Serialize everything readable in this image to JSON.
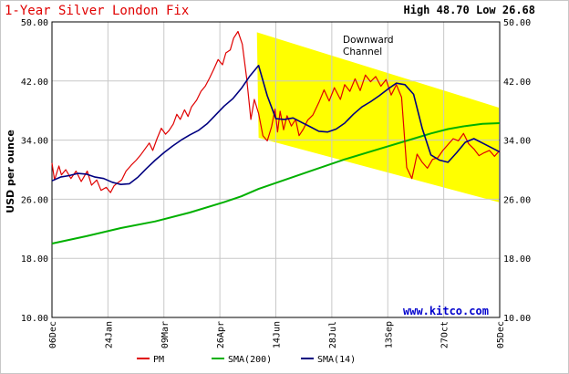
{
  "title": "1-Year Silver London Fix",
  "high_low": "High 48.70 Low 26.68",
  "annotation_line1": "Downward",
  "annotation_line2": "Channel",
  "watermark": "www.kitco.com",
  "colors": {
    "pm": "#e00000",
    "sma200": "#00b000",
    "sma14": "#000080",
    "channel": "#ffff00",
    "grid": "#c8c8c8",
    "title": "#e00000",
    "watermark": "#0000cc"
  },
  "chart_data": {
    "type": "line",
    "title": "1-Year Silver London Fix",
    "xlabel": "",
    "ylabel": "USD per ounce",
    "ylim": [
      10,
      50
    ],
    "yticks": [
      "50.00",
      "42.00",
      "34.00",
      "26.00",
      "18.00",
      "10.00"
    ],
    "ytick_values": [
      50,
      42,
      34,
      26,
      18,
      10
    ],
    "xticks": [
      "06Dec",
      "24Jan",
      "09Mar",
      "26Apr",
      "14Jun",
      "28Jul",
      "13Sep",
      "27Oct",
      "05Dec"
    ],
    "grid": true,
    "legend_position": "bottom",
    "legend": [
      "PM",
      "SMA(200)",
      "SMA(14)"
    ],
    "series": [
      {
        "name": "PM",
        "x": [
          0,
          0.3,
          0.8,
          1.1,
          1.6,
          2.2,
          2.8,
          3.4,
          4.1,
          4.6,
          5.2,
          5.7,
          6.3,
          6.8,
          7.2,
          7.6,
          8.1,
          8.6,
          9.2,
          9.8,
          10.3,
          10.8,
          11.3,
          11.7,
          12.2,
          12.7,
          13.2,
          13.6,
          14.1,
          14.5,
          14.9,
          15.4,
          15.8,
          16.2,
          16.8,
          17.3,
          17.8,
          18.3,
          18.8,
          19.3,
          19.8,
          20.2,
          20.7,
          21.1,
          21.6,
          22.1,
          22.6,
          23.1,
          23.5,
          24.0,
          24.5,
          25.0,
          25.5,
          25.9,
          26.2,
          26.5,
          26.9,
          27.3,
          27.8,
          28.3,
          28.7,
          29.2,
          29.7,
          30.3,
          31.0,
          31.6,
          32.2,
          32.8,
          33.5,
          34.0,
          34.6,
          35.2,
          35.8,
          36.4,
          37.0,
          37.6,
          38.2,
          38.8,
          39.4,
          40.0,
          40.6,
          41.2,
          41.8,
          42.4,
          43.0,
          43.6,
          44.2,
          44.8,
          45.4,
          46.0,
          46.6,
          47.2,
          47.8,
          48.4,
          49.0,
          49.6,
          50.2,
          50.8,
          51.4,
          52.0
        ],
        "values": [
          30.9,
          28.6,
          30.5,
          29.3,
          30.0,
          28.8,
          29.8,
          28.4,
          29.8,
          27.9,
          28.6,
          27.2,
          27.6,
          26.9,
          27.8,
          28.2,
          28.6,
          29.8,
          30.6,
          31.3,
          32.0,
          32.8,
          33.6,
          32.6,
          34.2,
          35.6,
          34.8,
          35.3,
          36.2,
          37.5,
          36.8,
          38.1,
          37.2,
          38.5,
          39.4,
          40.6,
          41.3,
          42.4,
          43.6,
          44.9,
          44.2,
          45.8,
          46.2,
          47.8,
          48.7,
          47.0,
          42.5,
          36.8,
          39.5,
          37.6,
          34.6,
          33.9,
          35.8,
          38.2,
          35.1,
          37.9,
          35.4,
          37.3,
          35.9,
          36.8,
          34.6,
          35.5,
          36.7,
          37.4,
          39.1,
          40.8,
          39.3,
          41.1,
          39.5,
          41.5,
          40.6,
          42.3,
          40.7,
          42.8,
          41.9,
          42.6,
          41.3,
          42.2,
          40.1,
          41.5,
          39.8,
          30.3,
          28.8,
          32.1,
          31.0,
          30.2,
          31.4,
          31.6,
          32.6,
          33.4,
          34.2,
          33.9,
          34.9,
          33.5,
          32.8,
          31.9,
          32.3,
          32.6,
          31.8,
          32.6
        ]
      },
      {
        "name": "SMA(200)",
        "x": [
          0,
          4,
          8,
          12,
          16,
          20,
          22,
          24,
          26,
          30,
          34,
          38,
          42,
          44,
          46,
          48,
          50,
          52
        ],
        "values": [
          20.0,
          21.0,
          22.1,
          23.0,
          24.2,
          25.6,
          26.4,
          27.4,
          28.2,
          29.8,
          31.4,
          32.8,
          34.2,
          34.9,
          35.5,
          35.9,
          36.2,
          36.3
        ]
      },
      {
        "name": "SMA(14)",
        "x": [
          0,
          1,
          2,
          3,
          4,
          5,
          6,
          7,
          8,
          9,
          10,
          11,
          12,
          13,
          14,
          15,
          16,
          17,
          18,
          19,
          20,
          21,
          22,
          23,
          24,
          25,
          26,
          27,
          28,
          29,
          30,
          31,
          32,
          33,
          34,
          35,
          36,
          37,
          38,
          39,
          40,
          41,
          42,
          43,
          44,
          45,
          46,
          47,
          48,
          49,
          50,
          51,
          52
        ],
        "values": [
          28.5,
          29.0,
          29.2,
          29.5,
          29.4,
          29.0,
          28.8,
          28.3,
          28.0,
          28.1,
          29.0,
          30.2,
          31.3,
          32.3,
          33.2,
          34.0,
          34.7,
          35.3,
          36.2,
          37.4,
          38.6,
          39.6,
          41.0,
          42.7,
          44.1,
          40.0,
          36.9,
          36.8,
          37.0,
          36.4,
          35.8,
          35.2,
          35.1,
          35.5,
          36.3,
          37.5,
          38.5,
          39.2,
          40.0,
          40.9,
          41.7,
          41.5,
          40.2,
          35.6,
          32.0,
          31.3,
          31.0,
          32.3,
          33.7,
          34.2,
          33.6,
          33.0,
          32.4
        ]
      }
    ],
    "channel": {
      "upper": {
        "x": [
          23.8,
          51.9
        ],
        "values": [
          48.6,
          38.4
        ]
      },
      "lower": {
        "x": [
          24.0,
          51.9
        ],
        "values": [
          34.3,
          25.6
        ]
      }
    }
  }
}
